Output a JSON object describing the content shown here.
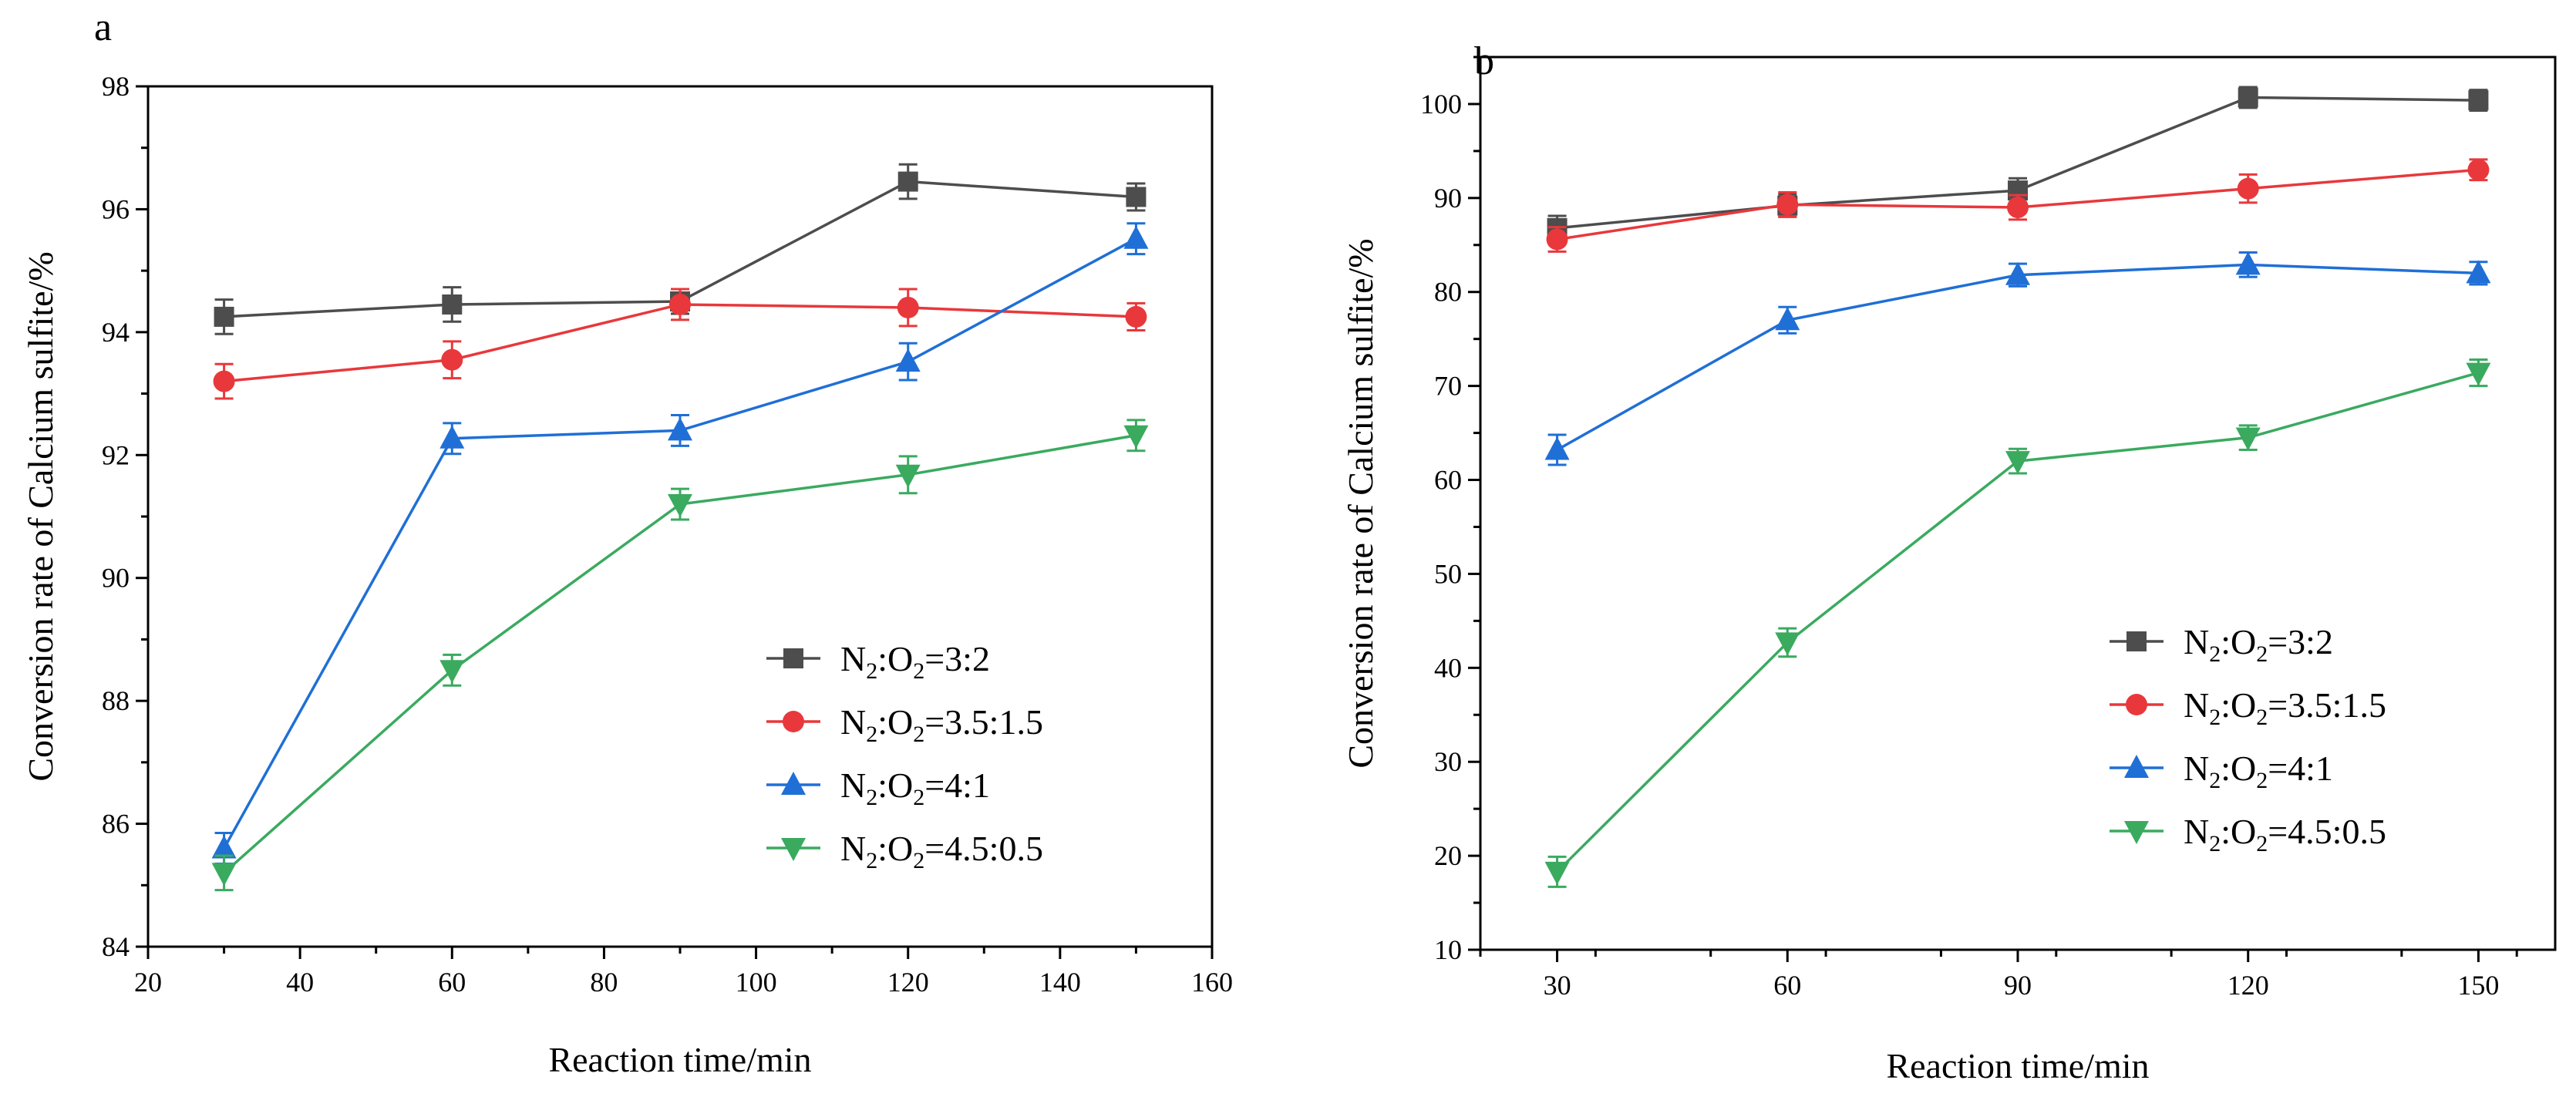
{
  "chart_data": [
    {
      "type": "line",
      "panel_label": "a",
      "xlabel": "Reaction time/min",
      "ylabel": "Conversion rate of Calcium sulfite/%",
      "xlim": [
        20,
        160
      ],
      "ylim": [
        84,
        98
      ],
      "xticks": [
        20,
        40,
        60,
        80,
        100,
        120,
        140,
        160
      ],
      "yticks": [
        84,
        86,
        88,
        90,
        92,
        94,
        96,
        98
      ],
      "x": [
        30,
        60,
        90,
        120,
        150
      ],
      "legend_position": "lower-right",
      "series": [
        {
          "name": "N2:O2=3:2",
          "legend": {
            "n": "N",
            "s1": "2",
            "mid": ":O",
            "s2": "2",
            "ratio": "=3:2"
          },
          "color": "#4d4d4d",
          "marker": "square",
          "values": [
            94.25,
            94.45,
            94.5,
            96.45,
            96.2
          ],
          "errors": [
            0.28,
            0.28,
            0.2,
            0.28,
            0.22
          ]
        },
        {
          "name": "N2:O2=3.5:1.5",
          "legend": {
            "n": "N",
            "s1": "2",
            "mid": ":O",
            "s2": "2",
            "ratio": "=3.5:1.5"
          },
          "color": "#e8383b",
          "marker": "circle",
          "values": [
            93.2,
            93.55,
            94.45,
            94.4,
            94.25
          ],
          "errors": [
            0.28,
            0.3,
            0.25,
            0.3,
            0.22
          ]
        },
        {
          "name": "N2:O2=4:1",
          "legend": {
            "n": "N",
            "s1": "2",
            "mid": ":O",
            "s2": "2",
            "ratio": "=4:1"
          },
          "color": "#1f6fd6",
          "marker": "triangle-up",
          "values": [
            85.6,
            92.27,
            92.4,
            93.52,
            95.52
          ],
          "errors": [
            0.25,
            0.25,
            0.25,
            0.3,
            0.25
          ]
        },
        {
          "name": "N2:O2=4.5:0.5",
          "legend": {
            "n": "N",
            "s1": "2",
            "mid": ":O",
            "s2": "2",
            "ratio": "=4.5:0.5"
          },
          "color": "#3aaa5f",
          "marker": "triangle-down",
          "values": [
            85.2,
            88.5,
            91.2,
            91.68,
            92.32
          ],
          "errors": [
            0.28,
            0.25,
            0.25,
            0.3,
            0.25
          ]
        }
      ]
    },
    {
      "type": "line",
      "panel_label": "b",
      "xlabel": "Reaction time/min",
      "ylabel": "Conversion rate of Calcium sulfite/%",
      "xlim": [
        20,
        160
      ],
      "ylim": [
        10,
        105
      ],
      "xticks": [
        30,
        60,
        90,
        120,
        150
      ],
      "yticks": [
        10,
        20,
        30,
        40,
        50,
        60,
        70,
        80,
        90,
        100
      ],
      "x": [
        30,
        60,
        90,
        120,
        150
      ],
      "legend_position": "lower-right",
      "series": [
        {
          "name": "N2:O2=3:2",
          "legend": {
            "n": "N",
            "s1": "2",
            "mid": ":O",
            "s2": "2",
            "ratio": "=3:2"
          },
          "color": "#4d4d4d",
          "marker": "square",
          "values": [
            86.8,
            89.2,
            90.8,
            100.7,
            100.4
          ],
          "errors": [
            1.3,
            1.2,
            1.3,
            1.1,
            1.1
          ]
        },
        {
          "name": "N2:O2=3.5:1.5",
          "legend": {
            "n": "N",
            "s1": "2",
            "mid": ":O",
            "s2": "2",
            "ratio": "=3.5:1.5"
          },
          "color": "#e8383b",
          "marker": "circle",
          "values": [
            85.6,
            89.3,
            89.0,
            91.0,
            93.0
          ],
          "errors": [
            1.3,
            1.3,
            1.3,
            1.5,
            1.1
          ]
        },
        {
          "name": "N2:O2=4:1",
          "legend": {
            "n": "N",
            "s1": "2",
            "mid": ":O",
            "s2": "2",
            "ratio": "=4:1"
          },
          "color": "#1f6fd6",
          "marker": "triangle-up",
          "values": [
            63.2,
            77.0,
            81.8,
            82.9,
            82.0
          ],
          "errors": [
            1.6,
            1.4,
            1.2,
            1.3,
            1.2
          ]
        },
        {
          "name": "N2:O2=4.5:0.5",
          "legend": {
            "n": "N",
            "s1": "2",
            "mid": ":O",
            "s2": "2",
            "ratio": "=4.5:0.5"
          },
          "color": "#3aaa5f",
          "marker": "triangle-down",
          "values": [
            18.3,
            42.7,
            62.0,
            64.5,
            71.4
          ],
          "errors": [
            1.6,
            1.5,
            1.3,
            1.3,
            1.4
          ]
        }
      ]
    }
  ]
}
